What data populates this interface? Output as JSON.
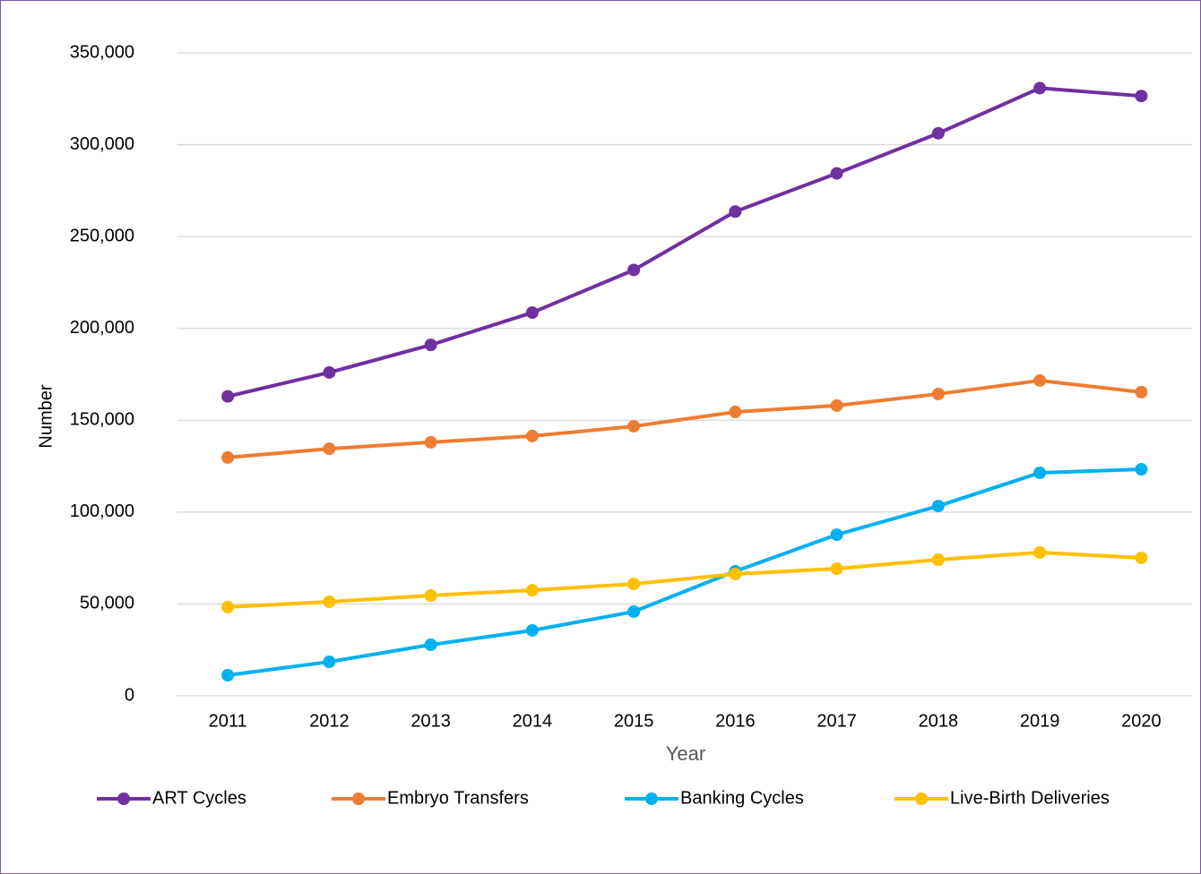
{
  "chart_data": {
    "type": "line",
    "x_label": "Year",
    "y_label": "Number",
    "categories": [
      "2011",
      "2012",
      "2013",
      "2014",
      "2015",
      "2016",
      "2017",
      "2018",
      "2019",
      "2020"
    ],
    "series": [
      {
        "name": "ART Cycles",
        "color": "#7030a0",
        "values": [
          163000,
          176000,
          191000,
          208600,
          231800,
          263600,
          284400,
          306200,
          330800,
          326500
        ]
      },
      {
        "name": "Embryo Transfers",
        "color": "#ed7d31",
        "values": [
          129700,
          134500,
          138000,
          141400,
          146700,
          154500,
          158000,
          164300,
          171600,
          165300
        ]
      },
      {
        "name": "Banking Cycles",
        "color": "#00b0f0",
        "values": [
          11200,
          18500,
          27800,
          35600,
          45800,
          67800,
          87700,
          103300,
          121400,
          123300
        ]
      },
      {
        "name": "Live-Birth Deliveries",
        "color": "#ffc000",
        "values": [
          48300,
          51200,
          54600,
          57500,
          60900,
          66300,
          69200,
          74100,
          78000,
          75100
        ]
      }
    ],
    "ylim": [
      0,
      350000
    ],
    "yticks": [
      0,
      {
        "value": 50000,
        "label": "50,000"
      },
      {
        "value": 100000,
        "label": "100,000"
      },
      {
        "value": 150000,
        "label": "150,000"
      },
      {
        "value": 200000,
        "label": "200,000"
      },
      {
        "value": 250000,
        "label": "250,000"
      },
      {
        "value": 300000,
        "label": "300,000"
      },
      {
        "value": 350000,
        "label": "350,000"
      }
    ],
    "grid": true,
    "legend": "bottom"
  }
}
